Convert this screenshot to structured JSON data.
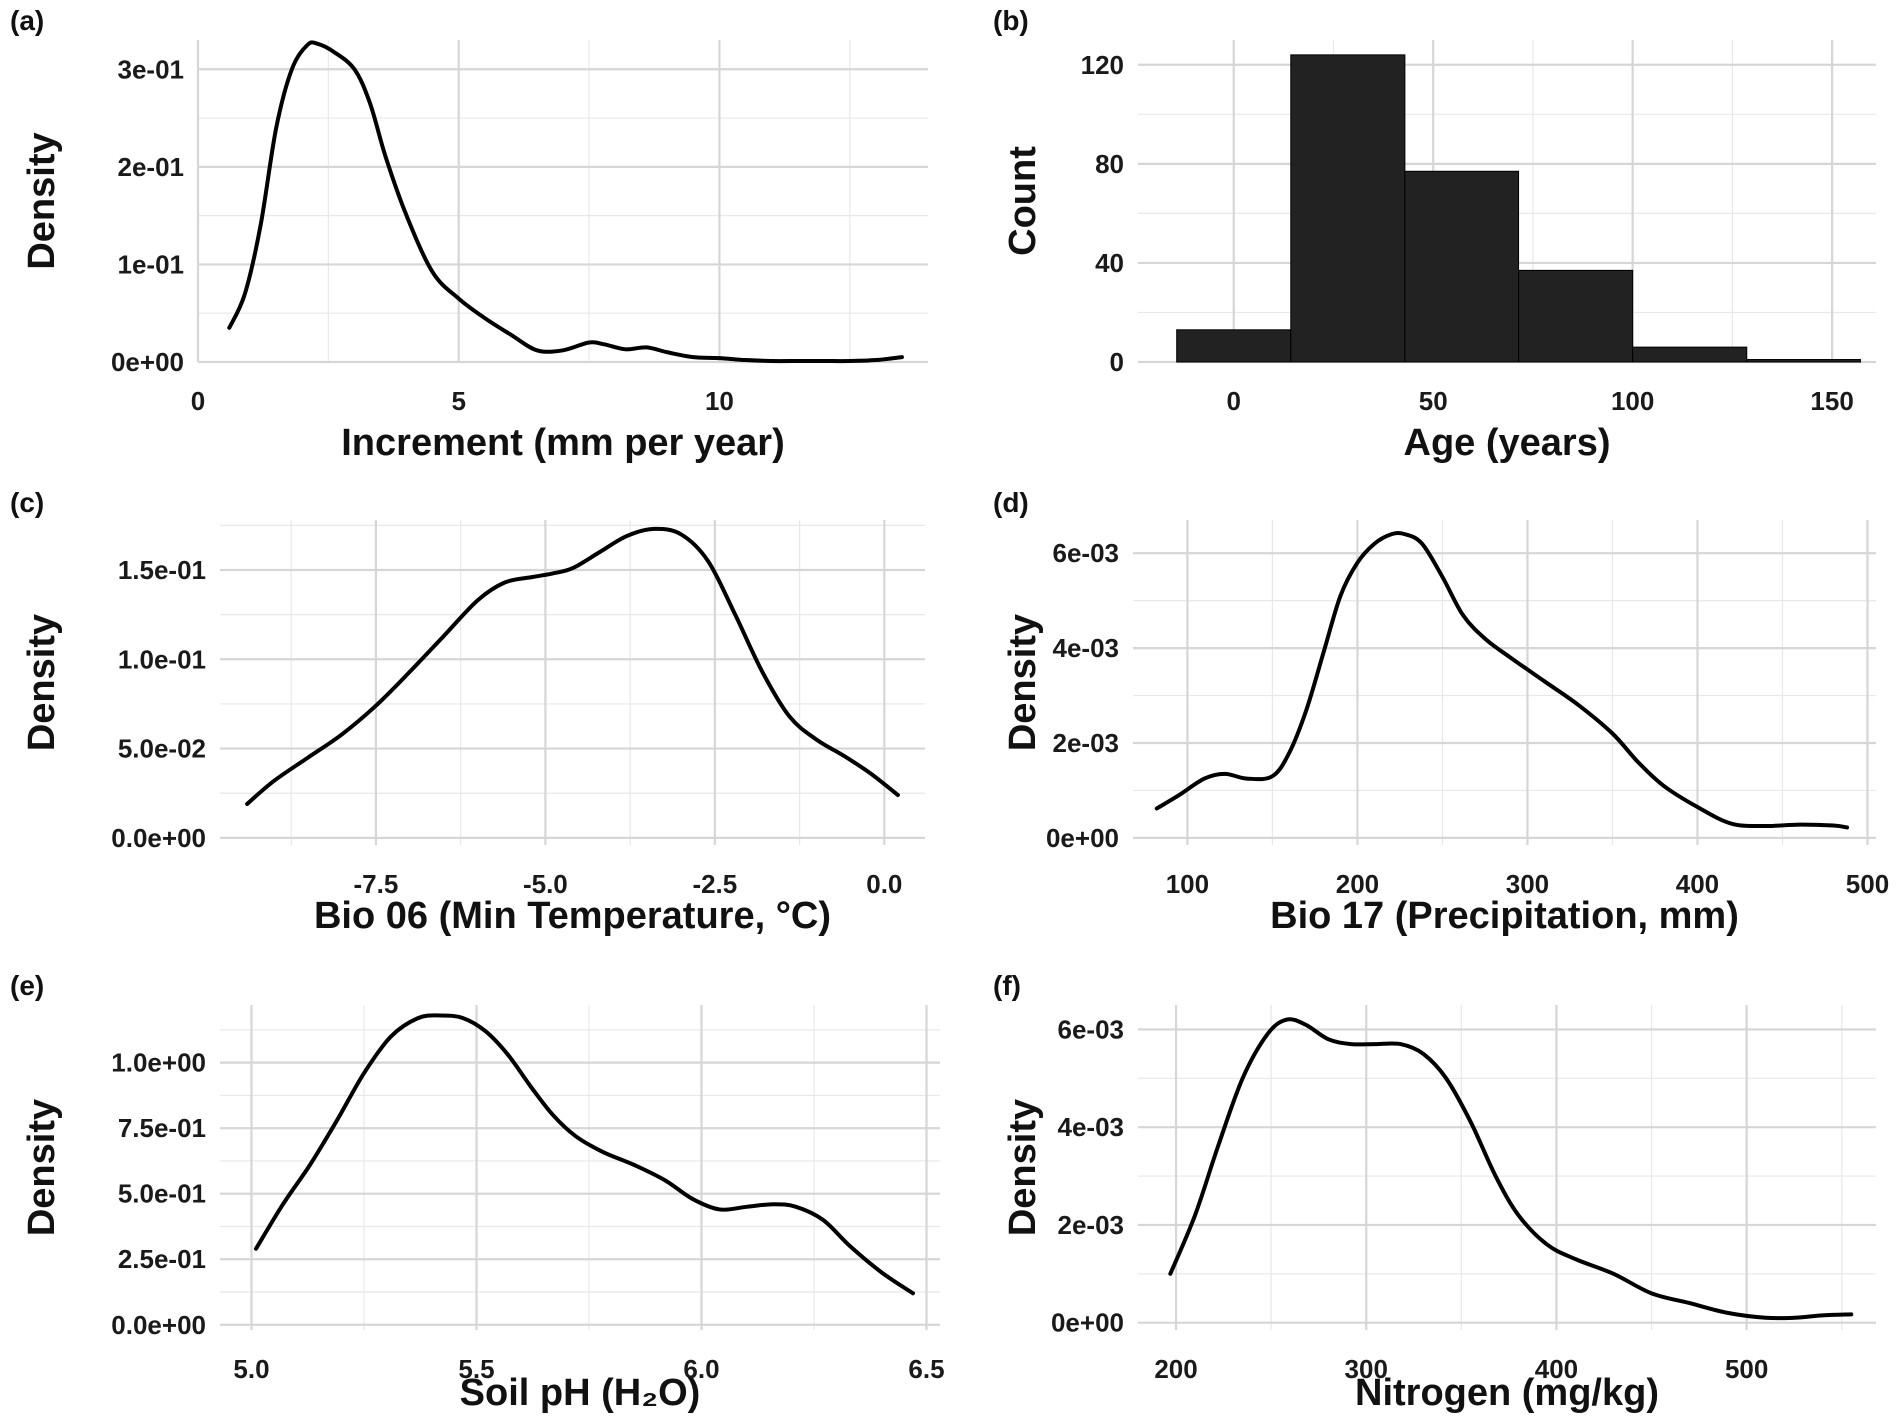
{
  "colors": {
    "line": "#000000",
    "bar_fill": "#222222",
    "grid_major": "#d6d6d6",
    "grid_minor": "#e8e8e8"
  },
  "chart_data": [
    {
      "id": "a",
      "panel_label": "(a)",
      "type": "line",
      "title": "",
      "xlabel": "Increment (mm per year)",
      "ylabel": "Density",
      "xlim": [
        0,
        14
      ],
      "ylim": [
        0,
        0.33
      ],
      "x_ticks": [
        0,
        5,
        10
      ],
      "y_ticks": [
        0,
        0.1,
        0.2,
        0.3
      ],
      "y_tick_labels": [
        "0e+00",
        "1e-01",
        "2e-01",
        "3e-01"
      ],
      "grid": true,
      "x": [
        0.6,
        0.9,
        1.2,
        1.5,
        1.8,
        2.1,
        2.3,
        2.6,
        3.0,
        3.3,
        3.6,
        4.0,
        4.5,
        5.0,
        5.5,
        6.0,
        6.5,
        7.0,
        7.5,
        7.8,
        8.2,
        8.6,
        9.0,
        9.5,
        10.0,
        10.5,
        11.0,
        11.5,
        12.0,
        12.5,
        13.0,
        13.5
      ],
      "y": [
        0.035,
        0.07,
        0.14,
        0.24,
        0.3,
        0.325,
        0.326,
        0.318,
        0.3,
        0.265,
        0.21,
        0.15,
        0.092,
        0.065,
        0.045,
        0.028,
        0.012,
        0.012,
        0.02,
        0.018,
        0.013,
        0.015,
        0.01,
        0.005,
        0.004,
        0.002,
        0.001,
        0.001,
        0.001,
        0.001,
        0.002,
        0.005
      ]
    },
    {
      "id": "b",
      "panel_label": "(b)",
      "type": "bar",
      "title": "",
      "xlabel": "Age (years)",
      "ylabel": "Count",
      "xlim": [
        -24,
        161
      ],
      "ylim": [
        0,
        130
      ],
      "x_ticks": [
        0,
        50,
        100,
        150
      ],
      "y_ticks": [
        0,
        40,
        80,
        120
      ],
      "grid": true,
      "bins": [
        [
          -14.3,
          14.3
        ],
        [
          14.3,
          42.9
        ],
        [
          42.9,
          71.4
        ],
        [
          71.4,
          100
        ],
        [
          100,
          128.6
        ],
        [
          128.6,
          157.1
        ]
      ],
      "values": [
        13,
        124,
        77,
        37,
        6,
        1
      ]
    },
    {
      "id": "c",
      "panel_label": "(c)",
      "type": "line",
      "title": "",
      "xlabel": "Bio 06 (Min Temperature, °C)",
      "ylabel": "Density",
      "xlim": [
        -9.8,
        0.6
      ],
      "ylim": [
        -0.004,
        0.178
      ],
      "x_ticks": [
        -7.5,
        -5.0,
        -2.5,
        0.0
      ],
      "x_tick_labels": [
        "-7.5",
        "-5.0",
        "-2.5",
        "0.0"
      ],
      "y_ticks": [
        0,
        0.05,
        0.1,
        0.15
      ],
      "y_tick_labels": [
        "0.0e+00",
        "5.0e-02",
        "1.0e-01",
        "1.5e-01"
      ],
      "grid": true,
      "x": [
        -9.4,
        -9.0,
        -8.5,
        -8.0,
        -7.5,
        -7.0,
        -6.5,
        -6.0,
        -5.6,
        -5.2,
        -4.9,
        -4.6,
        -4.2,
        -3.8,
        -3.4,
        -3.0,
        -2.6,
        -2.2,
        -1.8,
        -1.4,
        -1.0,
        -0.6,
        -0.2,
        0.2
      ],
      "y": [
        0.019,
        0.032,
        0.045,
        0.058,
        0.074,
        0.093,
        0.113,
        0.133,
        0.143,
        0.146,
        0.148,
        0.151,
        0.16,
        0.169,
        0.173,
        0.17,
        0.155,
        0.125,
        0.093,
        0.068,
        0.055,
        0.046,
        0.036,
        0.024
      ]
    },
    {
      "id": "d",
      "panel_label": "(d)",
      "type": "line",
      "title": "",
      "xlabel": "Bio 17 (Precipitation, mm)",
      "ylabel": "Density",
      "xlim": [
        68,
        505
      ],
      "ylim": [
        -0.00015,
        0.0067
      ],
      "x_ticks": [
        100,
        200,
        300,
        400,
        500
      ],
      "y_ticks": [
        0,
        0.002,
        0.004,
        0.006
      ],
      "y_tick_labels": [
        "0e+00",
        "2e-03",
        "4e-03",
        "6e-03"
      ],
      "grid": true,
      "x": [
        82,
        95,
        110,
        122,
        135,
        150,
        160,
        170,
        180,
        190,
        200,
        210,
        220,
        228,
        238,
        250,
        262,
        275,
        290,
        310,
        330,
        350,
        365,
        380,
        400,
        420,
        440,
        460,
        480,
        488
      ],
      "y": [
        0.00062,
        0.0009,
        0.00125,
        0.00135,
        0.00125,
        0.0013,
        0.0018,
        0.0027,
        0.0039,
        0.0051,
        0.0058,
        0.0062,
        0.0064,
        0.0064,
        0.0062,
        0.0055,
        0.0047,
        0.0042,
        0.0038,
        0.0033,
        0.0028,
        0.0022,
        0.0016,
        0.0011,
        0.00065,
        0.0003,
        0.00025,
        0.00028,
        0.00026,
        0.00022
      ]
    },
    {
      "id": "e",
      "panel_label": "(e)",
      "type": "line",
      "title": "",
      "xlabel": "Soil pH (H₂O)",
      "ylabel": "Density",
      "xlim": [
        4.93,
        6.53
      ],
      "ylim": [
        -0.02,
        1.22
      ],
      "x_ticks": [
        5.0,
        5.5,
        6.0,
        6.5
      ],
      "x_tick_labels": [
        "5.0",
        "5.5",
        "6.0",
        "6.5"
      ],
      "y_ticks": [
        0,
        0.25,
        0.5,
        0.75,
        1.0
      ],
      "y_tick_labels": [
        "0.0e+00",
        "2.5e-01",
        "5.0e-01",
        "7.5e-01",
        "1.0e+00"
      ],
      "grid": true,
      "x": [
        5.01,
        5.07,
        5.13,
        5.19,
        5.25,
        5.31,
        5.37,
        5.42,
        5.47,
        5.52,
        5.57,
        5.62,
        5.67,
        5.72,
        5.78,
        5.85,
        5.92,
        5.98,
        6.04,
        6.1,
        6.16,
        6.21,
        6.27,
        6.33,
        6.4,
        6.47
      ],
      "y": [
        0.29,
        0.46,
        0.61,
        0.78,
        0.96,
        1.1,
        1.17,
        1.18,
        1.17,
        1.12,
        1.03,
        0.91,
        0.8,
        0.72,
        0.66,
        0.61,
        0.55,
        0.48,
        0.44,
        0.45,
        0.46,
        0.45,
        0.4,
        0.3,
        0.2,
        0.12
      ]
    },
    {
      "id": "f",
      "panel_label": "(f)",
      "type": "line",
      "title": "",
      "xlabel": "Nitrogen (mg/kg)",
      "ylabel": "Density",
      "xlim": [
        180,
        568
      ],
      "ylim": [
        -0.00015,
        0.0065
      ],
      "x_ticks": [
        200,
        300,
        400,
        500
      ],
      "y_ticks": [
        0,
        0.002,
        0.004,
        0.006
      ],
      "y_tick_labels": [
        "0e+00",
        "2e-03",
        "4e-03",
        "6e-03"
      ],
      "grid": true,
      "x": [
        197,
        210,
        222,
        235,
        248,
        258,
        268,
        280,
        292,
        305,
        318,
        330,
        342,
        355,
        368,
        380,
        395,
        410,
        430,
        450,
        470,
        490,
        510,
        525,
        540,
        555
      ],
      "y": [
        0.001,
        0.0022,
        0.0036,
        0.005,
        0.0059,
        0.0062,
        0.0061,
        0.0058,
        0.0057,
        0.0057,
        0.0057,
        0.0055,
        0.005,
        0.0041,
        0.003,
        0.0022,
        0.0016,
        0.0013,
        0.001,
        0.0006,
        0.0004,
        0.0002,
        0.0001,
        0.0001,
        0.00015,
        0.00017
      ]
    }
  ]
}
